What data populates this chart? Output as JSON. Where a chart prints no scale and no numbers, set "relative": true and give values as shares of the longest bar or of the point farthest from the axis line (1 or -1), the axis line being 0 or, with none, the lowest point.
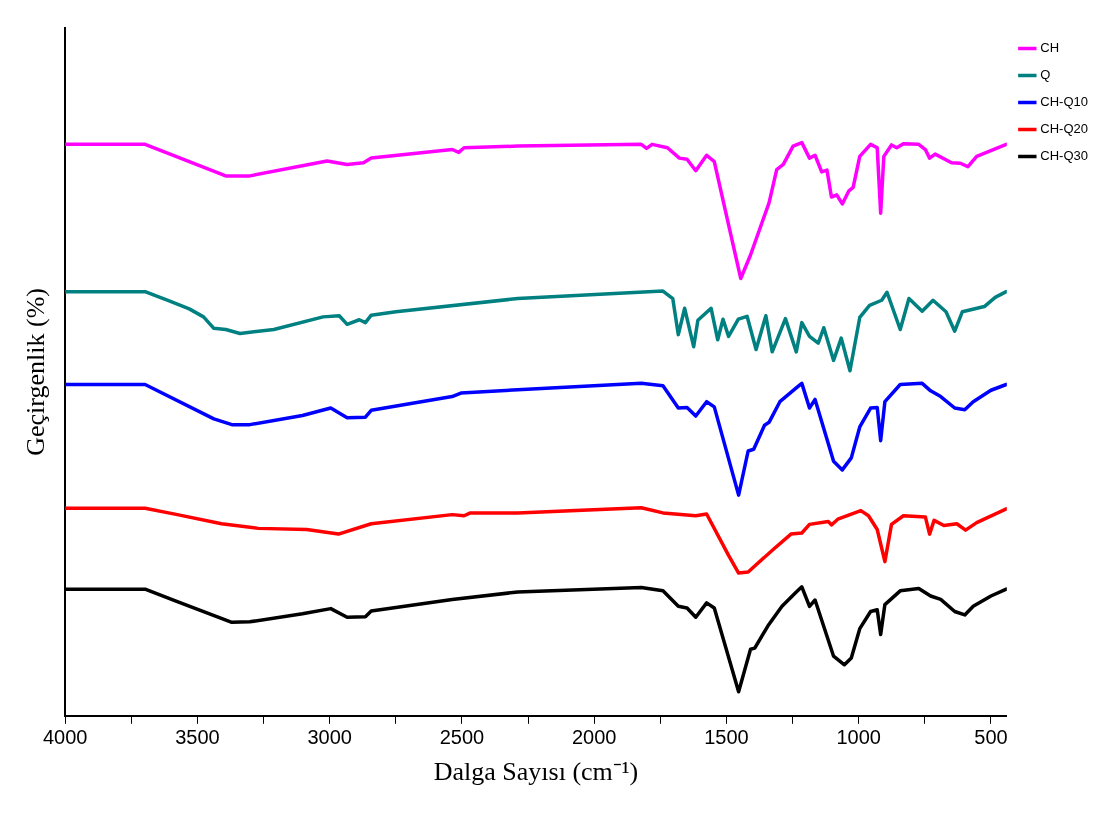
{
  "chart_data": {
    "type": "line",
    "xlabel": "Dalga Sayısı (cm⁻¹)",
    "ylabel": "Geçirgenlik (%)",
    "relative": true,
    "xlim": [
      4000,
      440
    ],
    "xticks": [
      4000,
      {
        "value": 3750,
        "label": null
      },
      3500,
      {
        "value": 3250,
        "label": null
      },
      3000,
      {
        "value": 2750,
        "label": null
      },
      2500,
      {
        "value": 2250,
        "label": null
      },
      2000,
      {
        "value": 1750,
        "label": null
      },
      1500,
      {
        "value": 1250,
        "label": null
      },
      1000,
      {
        "value": 750,
        "label": null
      },
      500
    ],
    "legend": "top right",
    "grid": false,
    "marker": "none",
    "line_style": "solid",
    "series": [
      {
        "name": "CH",
        "color": "#ff00ff",
        "x": [
          4000,
          3698,
          3393,
          3302,
          3010,
          2934,
          2872,
          2843,
          2537,
          2512,
          2492,
          2289,
          1822,
          1802,
          1781,
          1723,
          1678,
          1649,
          1616,
          1575,
          1546,
          1446,
          1409,
          1339,
          1310,
          1285,
          1248,
          1215,
          1186,
          1165,
          1140,
          1120,
          1103,
          1083,
          1062,
          1037,
          1021,
          996,
          955,
          930,
          917,
          905,
          876,
          856,
          831,
          773,
          748,
          732,
          711,
          649,
          616,
          587,
          554,
          442
        ],
        "values": [
          0.997,
          0.997,
          0.942,
          0.942,
          0.968,
          0.962,
          0.965,
          0.973,
          0.988,
          0.983,
          0.991,
          0.994,
          0.997,
          0.99,
          0.997,
          0.991,
          0.973,
          0.971,
          0.951,
          0.978,
          0.967,
          0.763,
          0.804,
          0.895,
          0.953,
          0.962,
          0.994,
          1.0,
          0.973,
          0.978,
          0.949,
          0.952,
          0.905,
          0.909,
          0.893,
          0.916,
          0.922,
          0.976,
          0.997,
          0.991,
          0.877,
          0.976,
          0.996,
          0.991,
          0.998,
          0.997,
          0.988,
          0.973,
          0.98,
          0.965,
          0.964,
          0.958,
          0.976,
          0.997
        ]
      },
      {
        "name": "Q",
        "color": "#008080",
        "x": [
          4000,
          3698,
          3607,
          3531,
          3477,
          3438,
          3393,
          3339,
          3211,
          3025,
          2964,
          2934,
          2888,
          2865,
          2843,
          2750,
          2289,
          1740,
          1703,
          1682,
          1658,
          1624,
          1608,
          1558,
          1533,
          1513,
          1492,
          1455,
          1422,
          1388,
          1351,
          1327,
          1277,
          1236,
          1215,
          1186,
          1153,
          1132,
          1095,
          1066,
          1033,
          996,
          959,
          913,
          893,
          843,
          810,
          760,
          719,
          670,
          637,
          608,
          525,
          484,
          442
        ],
        "values": [
          0.74,
          0.74,
          0.724,
          0.71,
          0.696,
          0.676,
          0.674,
          0.667,
          0.674,
          0.696,
          0.698,
          0.683,
          0.691,
          0.686,
          0.699,
          0.705,
          0.728,
          0.741,
          0.728,
          0.665,
          0.711,
          0.644,
          0.69,
          0.711,
          0.656,
          0.692,
          0.662,
          0.692,
          0.697,
          0.639,
          0.698,
          0.635,
          0.693,
          0.635,
          0.686,
          0.662,
          0.65,
          0.677,
          0.62,
          0.659,
          0.602,
          0.695,
          0.716,
          0.725,
          0.739,
          0.674,
          0.728,
          0.706,
          0.725,
          0.705,
          0.671,
          0.705,
          0.714,
          0.73,
          0.74
        ]
      },
      {
        "name": "CH-Q10",
        "color": "#0000ff",
        "x": [
          4000,
          3698,
          3438,
          3370,
          3302,
          3103,
          2996,
          2934,
          2865,
          2843,
          2537,
          2504,
          2289,
          1822,
          1740,
          1682,
          1649,
          1616,
          1575,
          1546,
          1454,
          1418,
          1397,
          1356,
          1339,
          1298,
          1236,
          1215,
          1186,
          1165,
          1095,
          1062,
          1028,
          996,
          955,
          930,
          917,
          901,
          843,
          760,
          728,
          690,
          637,
          599,
          567,
          500,
          442
        ],
        "values": [
          0.578,
          0.578,
          0.518,
          0.508,
          0.508,
          0.524,
          0.537,
          0.52,
          0.521,
          0.533,
          0.557,
          0.563,
          0.569,
          0.58,
          0.576,
          0.537,
          0.538,
          0.523,
          0.548,
          0.539,
          0.385,
          0.462,
          0.465,
          0.507,
          0.512,
          0.548,
          0.572,
          0.58,
          0.537,
          0.552,
          0.444,
          0.429,
          0.45,
          0.504,
          0.537,
          0.538,
          0.48,
          0.548,
          0.578,
          0.58,
          0.567,
          0.557,
          0.537,
          0.534,
          0.548,
          0.568,
          0.578
        ]
      },
      {
        "name": "CH-Q20",
        "color": "#ff0000",
        "x": [
          4000,
          3698,
          3576,
          3409,
          3270,
          3087,
          2967,
          2843,
          2537,
          2492,
          2468,
          2289,
          1822,
          1740,
          1616,
          1575,
          1492,
          1454,
          1418,
          1319,
          1256,
          1215,
          1186,
          1115,
          1103,
          1079,
          992,
          963,
          930,
          901,
          876,
          831,
          748,
          732,
          715,
          678,
          629,
          596,
          554,
          442
        ],
        "values": [
          0.362,
          0.362,
          0.351,
          0.335,
          0.327,
          0.325,
          0.317,
          0.335,
          0.351,
          0.349,
          0.354,
          0.354,
          0.363,
          0.354,
          0.349,
          0.352,
          0.28,
          0.249,
          0.251,
          0.292,
          0.317,
          0.319,
          0.334,
          0.339,
          0.333,
          0.343,
          0.358,
          0.349,
          0.325,
          0.269,
          0.334,
          0.349,
          0.347,
          0.317,
          0.341,
          0.332,
          0.335,
          0.324,
          0.337,
          0.361
        ]
      },
      {
        "name": "CH-Q30",
        "color": "#000000",
        "x": [
          4000,
          3698,
          3576,
          3370,
          3302,
          3103,
          2996,
          2934,
          2865,
          2843,
          2537,
          2289,
          1822,
          1740,
          1682,
          1649,
          1616,
          1575,
          1546,
          1454,
          1409,
          1393,
          1343,
          1290,
          1236,
          1215,
          1186,
          1165,
          1095,
          1054,
          1028,
          996,
          955,
          930,
          917,
          901,
          843,
          773,
          728,
          690,
          637,
          599,
          567,
          500,
          442
        ],
        "values": [
          0.221,
          0.221,
          0.199,
          0.163,
          0.164,
          0.178,
          0.187,
          0.172,
          0.173,
          0.183,
          0.203,
          0.216,
          0.224,
          0.218,
          0.191,
          0.188,
          0.172,
          0.197,
          0.188,
          0.042,
          0.116,
          0.118,
          0.157,
          0.191,
          0.216,
          0.225,
          0.191,
          0.202,
          0.104,
          0.089,
          0.101,
          0.152,
          0.182,
          0.185,
          0.142,
          0.194,
          0.218,
          0.222,
          0.209,
          0.203,
          0.182,
          0.176,
          0.191,
          0.209,
          0.221
        ]
      }
    ]
  }
}
